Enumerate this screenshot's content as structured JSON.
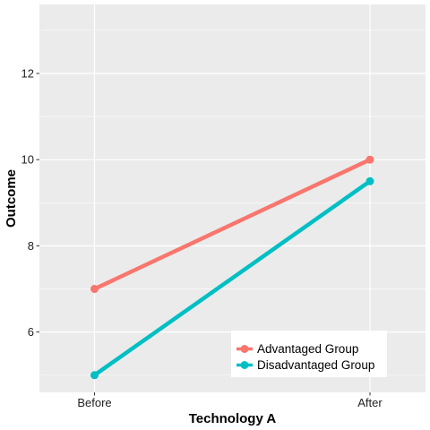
{
  "chart_data": {
    "type": "line",
    "title": "",
    "xlabel": "Technology A",
    "ylabel": "Outcome",
    "categories": [
      "Before",
      "After"
    ],
    "ylim": [
      4.6,
      13.6
    ],
    "yticks": [
      6,
      8,
      10,
      12
    ],
    "ytick_labels": [
      "6",
      "8",
      "10",
      "12"
    ],
    "grid": true,
    "legend_position": "bottom-right",
    "series": [
      {
        "name": "Advantaged Group",
        "color": "#F8766D",
        "values": [
          7,
          10
        ]
      },
      {
        "name": "Disadvantaged Group",
        "color": "#00BFC4",
        "values": [
          5,
          9.5
        ]
      }
    ]
  }
}
